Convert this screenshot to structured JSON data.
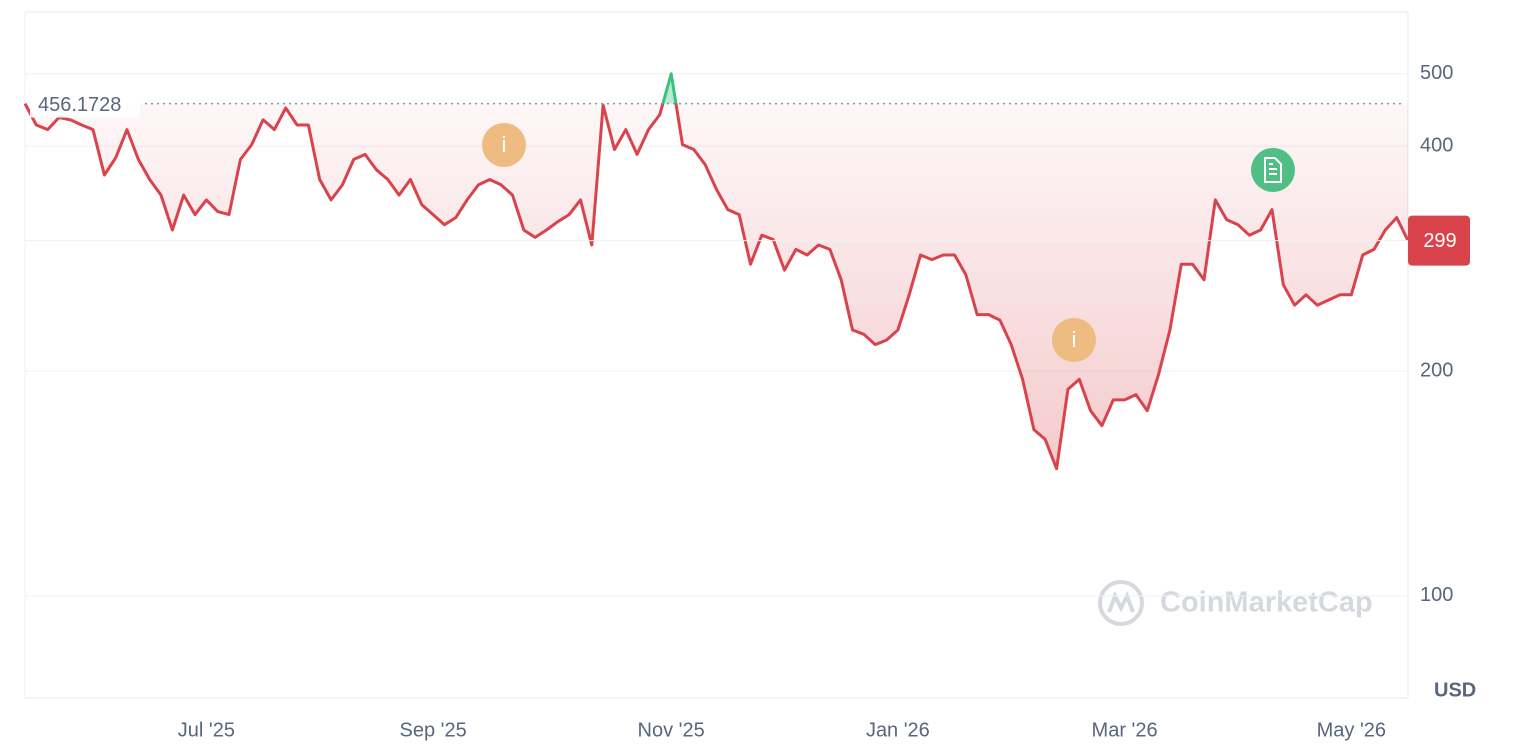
{
  "chart_data": {
    "type": "line",
    "log_scale": true,
    "grid": true,
    "categories": [
      null,
      null,
      null,
      null,
      null,
      null,
      null,
      null,
      null,
      null,
      null,
      null,
      null,
      null,
      null,
      null,
      "Jul '25",
      null,
      null,
      null,
      null,
      null,
      null,
      null,
      null,
      null,
      null,
      null,
      null,
      null,
      null,
      null,
      null,
      null,
      null,
      null,
      "Sep '25",
      null,
      null,
      null,
      null,
      null,
      null,
      null,
      null,
      null,
      null,
      null,
      null,
      null,
      null,
      null,
      null,
      null,
      null,
      null,
      null,
      "Nov '25",
      null,
      null,
      null,
      null,
      null,
      null,
      null,
      null,
      null,
      null,
      null,
      null,
      null,
      null,
      null,
      null,
      null,
      null,
      null,
      "Jan '26",
      null,
      null,
      null,
      null,
      null,
      null,
      null,
      null,
      null,
      null,
      null,
      null,
      null,
      null,
      null,
      null,
      null,
      null,
      null,
      "Mar '26",
      null,
      null,
      null,
      null,
      null,
      null,
      null,
      null,
      null,
      null,
      null,
      null,
      null,
      null,
      null,
      null,
      null,
      null,
      null,
      "May '26",
      null,
      null,
      null,
      null,
      null
    ],
    "values": [
      456.1728,
      427,
      421,
      437,
      434,
      427,
      421,
      366,
      386,
      421,
      384,
      361,
      344,
      309,
      344,
      324,
      339,
      327,
      324,
      384,
      402,
      434,
      421,
      450,
      427,
      427,
      361,
      339,
      355,
      384,
      390,
      372,
      361,
      344,
      361,
      334,
      324,
      314,
      321,
      339,
      355,
      361,
      355,
      344,
      309,
      302,
      309,
      317,
      324,
      339,
      295,
      454,
      396,
      421,
      390,
      421,
      441,
      500,
      402,
      396,
      378,
      350,
      329,
      324,
      278,
      304,
      300,
      273,
      291,
      286,
      295,
      291,
      265,
      227,
      224,
      217,
      220,
      227,
      253,
      286,
      282,
      286,
      286,
      269,
      238,
      238,
      234,
      217,
      195,
      167,
      162,
      148,
      189,
      195,
      177,
      169,
      183,
      183,
      186,
      177,
      198,
      227,
      278,
      278,
      265,
      339,
      319,
      314,
      304,
      309,
      329,
      261,
      245,
      253,
      245,
      249,
      253,
      253,
      286,
      291,
      309,
      321,
      299
    ],
    "color": "#d9434b",
    "up_color": "#3cc27e",
    "ylim": [
      73,
      605
    ],
    "yticks": [
      100,
      200,
      400,
      500
    ],
    "reference_value": 456.1728,
    "current_price": 299,
    "currency": "USD",
    "watermark": "CoinMarketCap",
    "event_markers": [
      "i",
      "i"
    ]
  }
}
